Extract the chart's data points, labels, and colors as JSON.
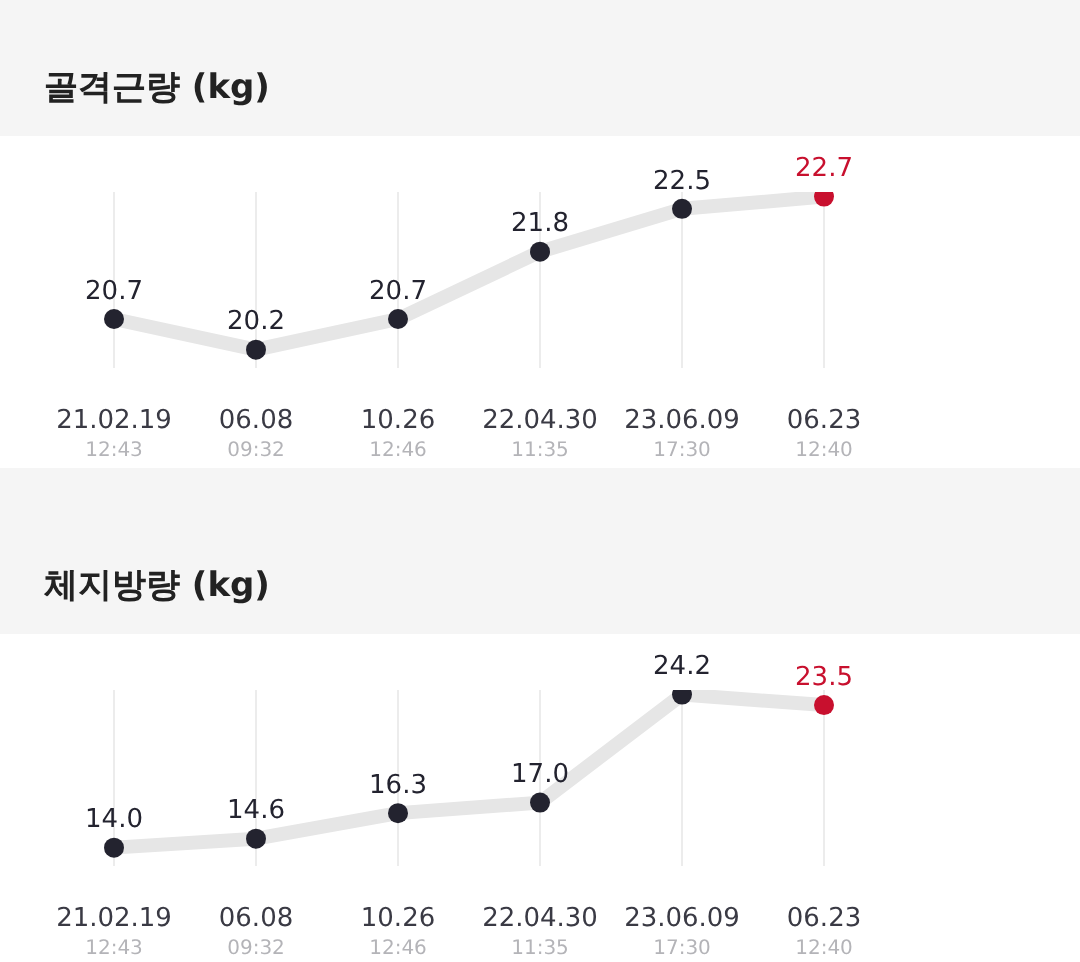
{
  "chart_data": [
    {
      "type": "line",
      "title": "골격근량 (kg)",
      "categories": [
        "21.02.19\n12:43",
        "06.08\n09:32",
        "10.26\n12:46",
        "22.04.30\n11:35",
        "23.06.09\n17:30",
        "06.23\n12:40"
      ],
      "series": [
        {
          "color": "#e6e6e6",
          "colors": [
            "#23232f",
            "#23232f",
            "#23232f",
            "#23232f",
            "#23232f",
            "#c8102e"
          ],
          "values": [
            20.7,
            20.2,
            20.7,
            21.8,
            22.5,
            22.7
          ],
          "value_labels": [
            "20.7",
            "20.2",
            "20.7",
            "21.8",
            "22.5",
            "22.7"
          ]
        }
      ],
      "grid": "x",
      "marker": "circle",
      "legend": false
    },
    {
      "type": "line",
      "title": "체지방량 (kg)",
      "categories": [
        "21.02.19\n12:43",
        "06.08\n09:32",
        "10.26\n12:46",
        "22.04.30\n11:35",
        "23.06.09\n17:30",
        "06.23\n12:40"
      ],
      "series": [
        {
          "color": "#e6e6e6",
          "colors": [
            "#23232f",
            "#23232f",
            "#23232f",
            "#23232f",
            "#23232f",
            "#c8102e"
          ],
          "values": [
            14.0,
            14.6,
            16.3,
            17.0,
            24.2,
            23.5
          ],
          "value_labels": [
            "14.0",
            "14.6",
            "16.3",
            "17.0",
            "24.2",
            "23.5"
          ]
        }
      ],
      "grid": "x",
      "marker": "circle",
      "legend": false
    }
  ]
}
